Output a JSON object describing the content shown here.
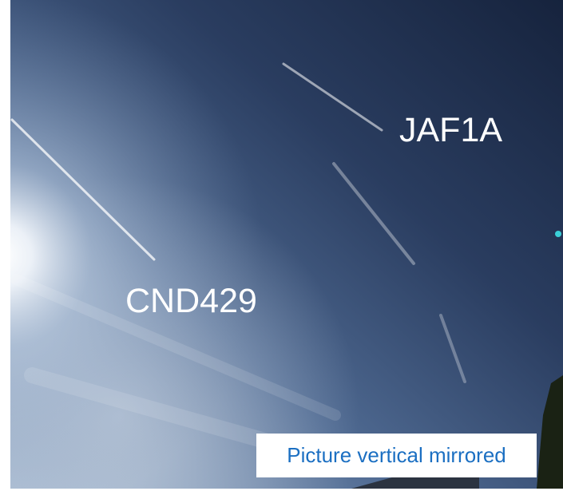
{
  "labels": [
    "JAF1A",
    "CND429"
  ],
  "caption": "Picture vertical mirrored"
}
